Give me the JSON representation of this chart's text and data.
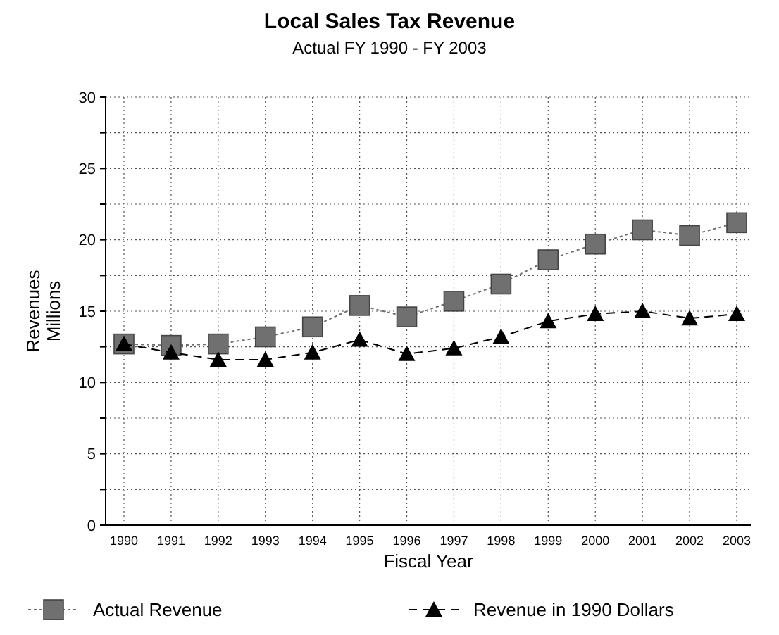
{
  "chart_data": {
    "type": "line",
    "title": "Local Sales Tax Revenue",
    "subtitle": "Actual FY 1990 - FY 2003",
    "xlabel": "Fiscal Year",
    "ylabel": "Revenues\nMillions",
    "categories": [
      "1990",
      "1991",
      "1992",
      "1993",
      "1994",
      "1995",
      "1996",
      "1997",
      "1998",
      "1999",
      "2000",
      "2001",
      "2002",
      "2003"
    ],
    "series": [
      {
        "name": "Actual Revenue",
        "color": "#707070",
        "marker": "square",
        "line_style": "dotted",
        "values": [
          12.7,
          12.6,
          12.7,
          13.2,
          13.9,
          15.4,
          14.6,
          15.7,
          16.9,
          18.6,
          19.7,
          20.7,
          20.3,
          21.2
        ]
      },
      {
        "name": "Revenue in 1990 Dollars",
        "color": "#000000",
        "marker": "triangle",
        "line_style": "dashed",
        "values": [
          12.7,
          12.1,
          11.6,
          11.6,
          12.1,
          13.0,
          12.0,
          12.4,
          13.2,
          14.3,
          14.8,
          15.0,
          14.5,
          14.8
        ]
      }
    ],
    "ylim": [
      0,
      30
    ],
    "yticks": [
      0,
      {
        "value": 2.5,
        "label": null
      },
      5,
      {
        "value": 7.5,
        "label": null
      },
      10,
      {
        "value": 12.5,
        "label": null
      },
      15,
      {
        "value": 17.5,
        "label": null
      },
      20,
      {
        "value": 22.5,
        "label": null
      },
      25,
      {
        "value": 27.5,
        "label": null
      },
      30
    ],
    "grid": true,
    "legend": "bottom"
  }
}
